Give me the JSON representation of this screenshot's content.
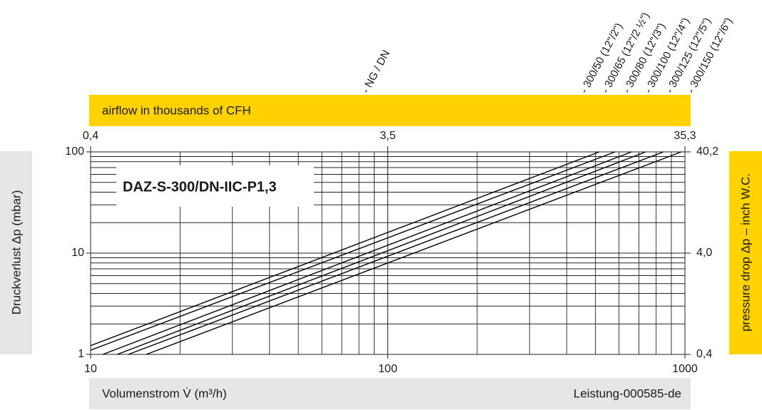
{
  "chart_data": {
    "type": "line",
    "title": "DAZ-S-300/DN-IIC-P1,3",
    "x_label": "Volumenstrom V̇ (m³/h)",
    "y_label": "Druckverlust Δp (mbar)",
    "x2_label": "airflow in thousands of CFH",
    "y2_label": "pressure drop Δp – inch W.C.",
    "legend_title": "- NG / DN",
    "annotation": "Leistung-000585-de",
    "x_log": true,
    "y_log": true,
    "grid": true,
    "xlim": [
      10,
      1000
    ],
    "xticks": [
      10,
      100,
      1000
    ],
    "ylim": [
      1,
      100
    ],
    "yticks": [
      1,
      10,
      100
    ],
    "x2lim": [
      0.353,
      35.3
    ],
    "x2ticks": [
      {
        "value": 0.353,
        "label": "0,4"
      },
      {
        "value": 3.53,
        "label": "3,5"
      },
      {
        "value": 35.3,
        "label": "35,3"
      }
    ],
    "y2lim": [
      0.402,
      40.2
    ],
    "y2ticks": [
      {
        "value": 0.402,
        "label": "0,4"
      },
      {
        "value": 4.02,
        "label": "4,0"
      },
      {
        "value": 40.2,
        "label": "40,2"
      }
    ],
    "series": [
      {
        "name": "- 300/50 (12\"/2\")",
        "color": "#000000",
        "x": [
          10,
          515
        ],
        "values": [
          1.22,
          100
        ]
      },
      {
        "name": "- 300/65 (12\"/2 ½\")",
        "color": "#000000",
        "x": [
          10,
          582
        ],
        "values": [
          1.1,
          100
        ]
      },
      {
        "name": "- 300/80 (12\"/3\")",
        "color": "#000000",
        "x": [
          11,
          661
        ],
        "values": [
          1,
          100
        ]
      },
      {
        "name": "- 300/100 (12\"/4\")",
        "color": "#000000",
        "x": [
          12.3,
          738
        ],
        "values": [
          1,
          100
        ]
      },
      {
        "name": "- 300/125 (12\"/5\")",
        "color": "#000000",
        "x": [
          13.4,
          847
        ],
        "values": [
          1,
          100
        ]
      },
      {
        "name": "- 300/150 (12\"/6\")",
        "color": "#000000",
        "x": [
          15.4,
          972
        ],
        "values": [
          1,
          100
        ]
      }
    ]
  }
}
